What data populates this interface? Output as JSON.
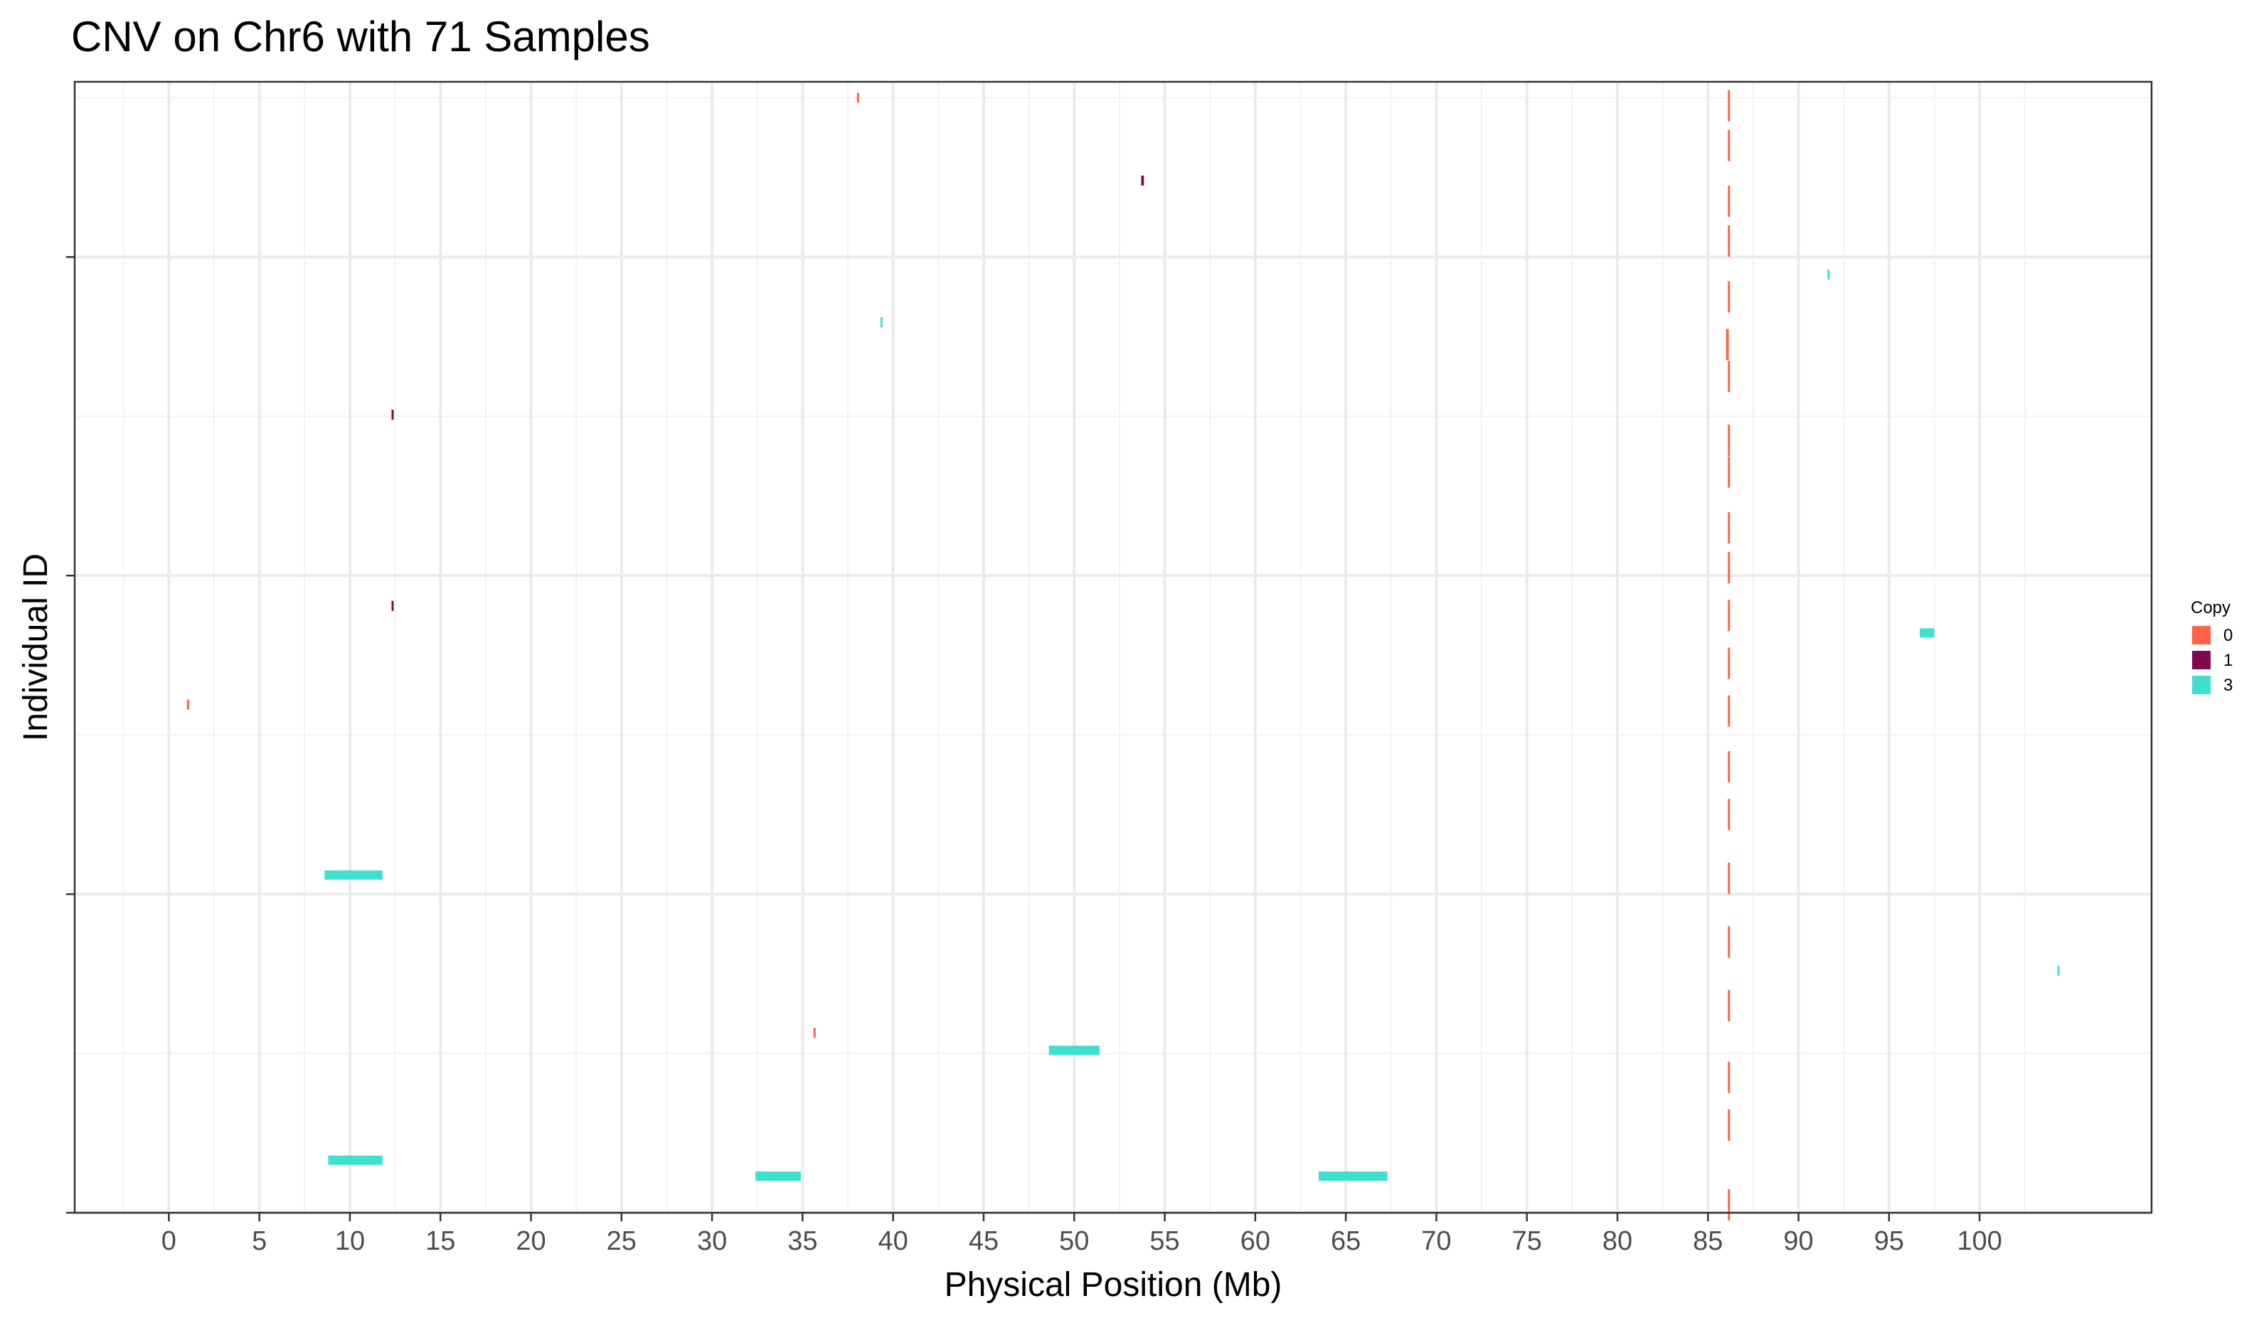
{
  "chart_data": {
    "type": "scatter",
    "title": "CNV on Chr6 with 71 Samples",
    "xlabel": "Physical Position (Mb)",
    "ylabel": "Individual ID",
    "xlim": [
      -5.2,
      109.5
    ],
    "ylim": [
      0,
      71
    ],
    "x_ticks": [
      0,
      5,
      10,
      15,
      20,
      25,
      30,
      35,
      40,
      45,
      50,
      55,
      60,
      65,
      70,
      75,
      80,
      85,
      90,
      95,
      100
    ],
    "y_ticks": [
      0,
      20,
      40,
      60
    ],
    "grid": true,
    "legend": {
      "title": "Copy",
      "position": "right",
      "entries": [
        {
          "label": "0",
          "color": "#FF6347"
        },
        {
          "label": "1",
          "color": "#7F0A50"
        },
        {
          "label": "3",
          "color": "#40E0D0"
        }
      ]
    },
    "segments": [
      {
        "copy": "0",
        "sample": 70,
        "start": 38.0,
        "end": 38.1
      },
      {
        "copy": "0",
        "sample": 69.5,
        "start": 86.1,
        "end": 86.15
      },
      {
        "copy": "0",
        "sample": 67,
        "start": 86.1,
        "end": 86.15
      },
      {
        "copy": "1",
        "sample": 64.8,
        "start": 53.7,
        "end": 53.85
      },
      {
        "copy": "0",
        "sample": 63.5,
        "start": 86.1,
        "end": 86.15
      },
      {
        "copy": "0",
        "sample": 61,
        "start": 86.1,
        "end": 86.15
      },
      {
        "copy": "3",
        "sample": 58.9,
        "start": 91.6,
        "end": 91.7
      },
      {
        "copy": "0",
        "sample": 57.5,
        "start": 86.1,
        "end": 86.15
      },
      {
        "copy": "3",
        "sample": 55.9,
        "start": 39.3,
        "end": 39.4
      },
      {
        "copy": "0",
        "sample": 54.5,
        "start": 86.0,
        "end": 86.15
      },
      {
        "copy": "0",
        "sample": 52.5,
        "start": 86.1,
        "end": 86.15
      },
      {
        "copy": "1",
        "sample": 50.1,
        "start": 12.3,
        "end": 12.4
      },
      {
        "copy": "0",
        "sample": 48.5,
        "start": 86.1,
        "end": 86.15
      },
      {
        "copy": "0",
        "sample": 46.5,
        "start": 86.1,
        "end": 86.15
      },
      {
        "copy": "0",
        "sample": 43,
        "start": 86.1,
        "end": 86.15
      },
      {
        "copy": "0",
        "sample": 40.5,
        "start": 86.1,
        "end": 86.15
      },
      {
        "copy": "1",
        "sample": 38.1,
        "start": 12.3,
        "end": 12.4
      },
      {
        "copy": "3",
        "sample": 36.4,
        "start": 96.7,
        "end": 97.5
      },
      {
        "copy": "0",
        "sample": 37.5,
        "start": 86.1,
        "end": 86.15
      },
      {
        "copy": "0",
        "sample": 34.5,
        "start": 86.1,
        "end": 86.15
      },
      {
        "copy": "0",
        "sample": 31.9,
        "start": 1.0,
        "end": 1.1
      },
      {
        "copy": "0",
        "sample": 31.5,
        "start": 86.1,
        "end": 86.15
      },
      {
        "copy": "0",
        "sample": 28,
        "start": 86.1,
        "end": 86.15
      },
      {
        "copy": "3",
        "sample": 21.2,
        "start": 8.6,
        "end": 11.8
      },
      {
        "copy": "0",
        "sample": 25,
        "start": 86.1,
        "end": 86.15
      },
      {
        "copy": "0",
        "sample": 21,
        "start": 86.1,
        "end": 86.15
      },
      {
        "copy": "0",
        "sample": 17,
        "start": 86.1,
        "end": 86.15
      },
      {
        "copy": "3",
        "sample": 15.2,
        "start": 104.3,
        "end": 104.4
      },
      {
        "copy": "0",
        "sample": 13,
        "start": 86.1,
        "end": 86.15
      },
      {
        "copy": "0",
        "sample": 11.3,
        "start": 35.6,
        "end": 35.7
      },
      {
        "copy": "3",
        "sample": 10.2,
        "start": 48.6,
        "end": 51.4
      },
      {
        "copy": "0",
        "sample": 8.5,
        "start": 86.1,
        "end": 86.15
      },
      {
        "copy": "0",
        "sample": 5.5,
        "start": 86.1,
        "end": 86.15
      },
      {
        "copy": "3",
        "sample": 3.3,
        "start": 8.8,
        "end": 11.8
      },
      {
        "copy": "3",
        "sample": 2.3,
        "start": 32.4,
        "end": 34.9
      },
      {
        "copy": "3",
        "sample": 2.3,
        "start": 63.5,
        "end": 67.3
      },
      {
        "copy": "0",
        "sample": 0.5,
        "start": 86.1,
        "end": 86.15
      }
    ]
  }
}
